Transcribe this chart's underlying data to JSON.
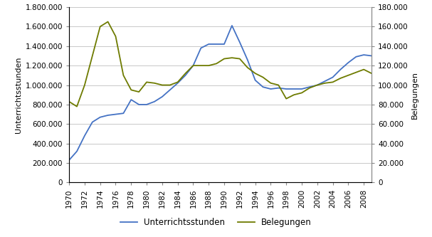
{
  "years": [
    1970,
    1971,
    1972,
    1973,
    1974,
    1975,
    1976,
    1977,
    1978,
    1979,
    1980,
    1981,
    1982,
    1983,
    1984,
    1985,
    1986,
    1987,
    1988,
    1989,
    1990,
    1991,
    1992,
    1993,
    1994,
    1995,
    1996,
    1997,
    1998,
    1999,
    2000,
    2001,
    2002,
    2003,
    2004,
    2005,
    2006,
    2007,
    2008,
    2009
  ],
  "unterrichtsstunden": [
    230000,
    320000,
    480000,
    620000,
    670000,
    690000,
    700000,
    710000,
    850000,
    800000,
    800000,
    830000,
    880000,
    950000,
    1020000,
    1100000,
    1200000,
    1380000,
    1420000,
    1420000,
    1420000,
    1610000,
    1440000,
    1260000,
    1050000,
    980000,
    960000,
    970000,
    960000,
    960000,
    960000,
    980000,
    1000000,
    1040000,
    1080000,
    1160000,
    1230000,
    1290000,
    1310000,
    1300000
  ],
  "belegungen": [
    83000,
    78000,
    100000,
    130000,
    160000,
    165000,
    150000,
    110000,
    95000,
    93000,
    103000,
    102000,
    100000,
    100000,
    103000,
    112000,
    120000,
    120000,
    120000,
    122000,
    127000,
    128000,
    127000,
    118000,
    112000,
    108000,
    102000,
    100000,
    86000,
    90000,
    92000,
    97000,
    100000,
    102000,
    103000,
    107000,
    110000,
    113000,
    116000,
    112000
  ],
  "left_ylabel": "Unterrichtsstunden",
  "right_ylabel": "Belegungen",
  "left_ylim": [
    0,
    1800000
  ],
  "right_ylim": [
    0,
    180000
  ],
  "left_yticks": [
    0,
    200000,
    400000,
    600000,
    800000,
    1000000,
    1200000,
    1400000,
    1600000,
    1800000
  ],
  "right_yticks": [
    0,
    20000,
    40000,
    60000,
    80000,
    100000,
    120000,
    140000,
    160000,
    180000
  ],
  "left_ytick_labels": [
    "0",
    "200.000",
    "400.000",
    "600.000",
    "800.000",
    "1.000.000",
    "1.200.000",
    "1.400.000",
    "1.600.000",
    "1.800.000"
  ],
  "right_ytick_labels": [
    "0",
    "20.000",
    "40.000",
    "60.000",
    "80.000",
    "100.000",
    "120.000",
    "140.000",
    "160.000",
    "180.000"
  ],
  "xtick_labels": [
    "1970",
    "1972",
    "1974",
    "1976",
    "1978",
    "1980",
    "1982",
    "1984",
    "1986",
    "1988",
    "1990",
    "1992",
    "1994",
    "1996",
    "1998",
    "2000",
    "2002",
    "2004",
    "2006",
    "2008"
  ],
  "line1_color": "#4472C4",
  "line2_color": "#6E7B00",
  "legend_labels": [
    "Unterrichtsstunden",
    "Belegungen"
  ],
  "bg_color": "#FFFFFF",
  "grid_color": "#C8C8C8"
}
